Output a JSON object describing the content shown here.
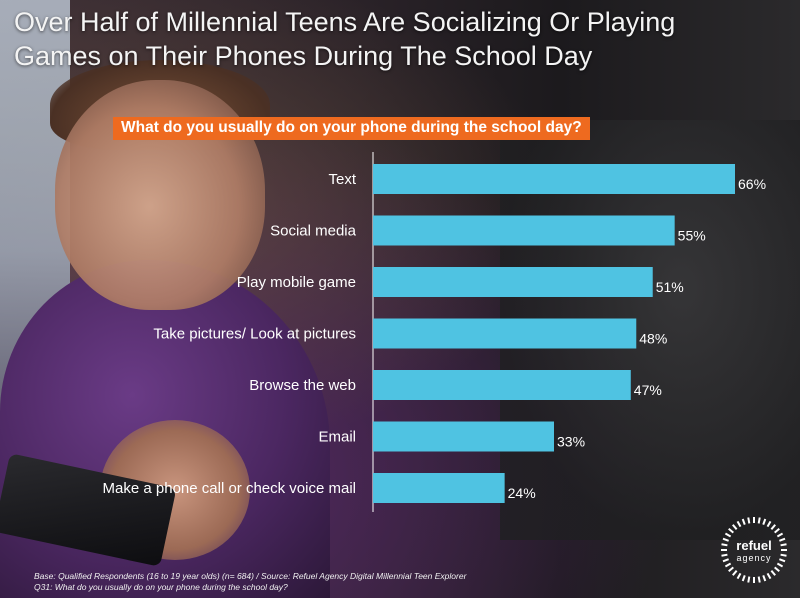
{
  "title": {
    "line1": "Over Half of Millennial Teens Are Socializing Or Playing",
    "line2": "Games on Their Phones During The School Day"
  },
  "question": "What do you usually do on your phone during the school day?",
  "chart_data": {
    "type": "bar",
    "orientation": "horizontal",
    "categories": [
      "Text",
      "Social media",
      "Play mobile game",
      "Take pictures/ Look at pictures",
      "Browse the web",
      "Email",
      "Make a phone call or check voice mail"
    ],
    "values": [
      66,
      55,
      51,
      48,
      47,
      33,
      24
    ],
    "value_labels": [
      "66%",
      "55%",
      "51%",
      "48%",
      "47%",
      "33%",
      "24%"
    ],
    "unit": "%",
    "xlim": [
      0,
      66
    ],
    "grid": false,
    "bar_color": "#4fc3e2"
  },
  "footnote": {
    "line1": "Base: Qualified Respondents (16 to 19 year olds)  (n= 684)  / Source: Refuel Agency Digital Millennial Teen Explorer",
    "line2": "Q31: What do you usually do on your phone during the school day?"
  },
  "logo": {
    "name": "refuel",
    "sub": "agency"
  },
  "colors": {
    "accent": "#ee6a1f",
    "bar": "#4fc3e2",
    "text": "#ffffff"
  }
}
